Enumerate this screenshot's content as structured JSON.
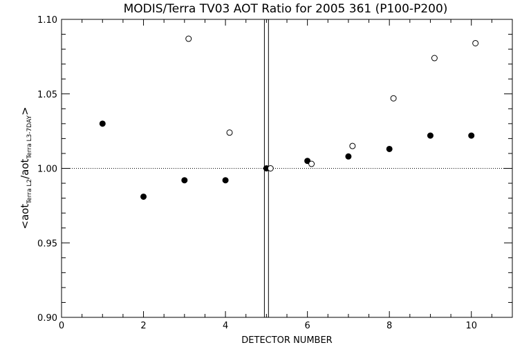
{
  "chart_data": {
    "type": "scatter",
    "title": "MODIS/Terra TV03 AOT Ratio for 2005 361 (P100-P200)",
    "xlabel": "DETECTOR NUMBER",
    "ylabel": {
      "prefix": "<aot",
      "sub1": "Terra L2",
      "mid": "/aot",
      "sub2": "Terra L3-7DAY",
      "suffix": ">"
    },
    "xlim": [
      0,
      11
    ],
    "ylim": [
      0.9,
      1.1
    ],
    "xticks": [
      0,
      2,
      4,
      6,
      8,
      10
    ],
    "xtick_labels": [
      "0",
      "2",
      "4",
      "6",
      "8",
      "10"
    ],
    "yticks": [
      0.9,
      0.95,
      1.0,
      1.05,
      1.1
    ],
    "ytick_labels": [
      "0.90",
      "0.95",
      "1.00",
      "1.05",
      "1.10"
    ],
    "reference_line_y": 1.0,
    "vertical_lines_x": [
      4.95,
      5.05
    ],
    "series": [
      {
        "marker": "filled-circle",
        "x": [
          1,
          2,
          3,
          4,
          5,
          6,
          7,
          8,
          9,
          10
        ],
        "y": [
          1.03,
          0.981,
          0.992,
          0.992,
          1.0,
          1.005,
          1.008,
          1.013,
          1.022,
          1.022
        ]
      },
      {
        "marker": "open-circle",
        "x": [
          3.1,
          4.1,
          5.1,
          6.1,
          7.1,
          8.1,
          9.1,
          10.1
        ],
        "y": [
          1.087,
          1.024,
          1.0,
          1.003,
          1.015,
          1.047,
          1.074,
          1.084
        ]
      }
    ]
  }
}
